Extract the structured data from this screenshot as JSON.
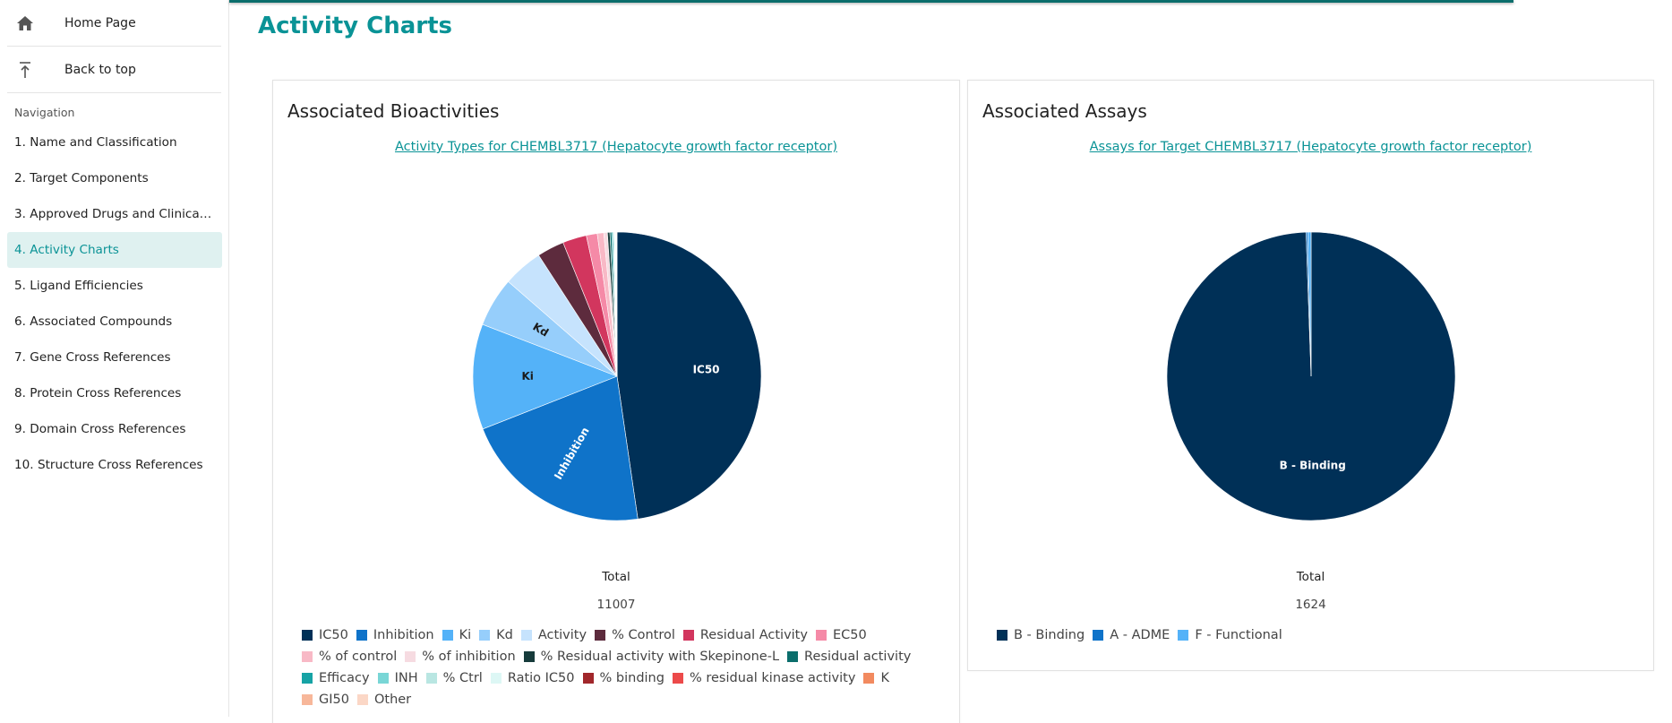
{
  "sidebar": {
    "home_label": "Home Page",
    "top_label": "Back to top",
    "nav_heading": "Navigation",
    "items": [
      {
        "label": "1. Name and Classification"
      },
      {
        "label": "2. Target Components"
      },
      {
        "label": "3. Approved Drugs and Clinical ..."
      },
      {
        "label": "4. Activity Charts"
      },
      {
        "label": "5. Ligand Efficiencies"
      },
      {
        "label": "6. Associated Compounds"
      },
      {
        "label": "7. Gene Cross References"
      },
      {
        "label": "8. Protein Cross References"
      },
      {
        "label": "9. Domain Cross References"
      },
      {
        "label": "10. Structure Cross References"
      }
    ],
    "active_index": 3
  },
  "page": {
    "title": "Activity Charts"
  },
  "bioactivities": {
    "heading": "Associated Bioactivities",
    "link": "Activity Types for CHEMBL3717 (Hepatocyte growth factor receptor)",
    "total_label": "Total",
    "total_value": "11007"
  },
  "assays": {
    "heading": "Associated Assays",
    "link": "Assays for Target CHEMBL3717 (Hepatocyte growth factor receptor)",
    "total_label": "Total",
    "total_value": "1624"
  },
  "chart_data": [
    {
      "type": "pie",
      "title": "Activity Types for CHEMBL3717 (Hepatocyte growth factor receptor)",
      "total": 11007,
      "legend_position": "bottom",
      "slices": [
        {
          "label": "IC50",
          "value": 5250,
          "color": "#003057",
          "show_label": true
        },
        {
          "label": "Inhibition",
          "value": 2350,
          "color": "#0f73c9",
          "show_label": true
        },
        {
          "label": "Ki",
          "value": 1300,
          "color": "#54b2f8",
          "show_label": true
        },
        {
          "label": "Kd",
          "value": 610,
          "color": "#96cefb",
          "show_label": true
        },
        {
          "label": "Activity",
          "value": 490,
          "color": "#c6e3fd",
          "show_label": false
        },
        {
          "label": "% Control",
          "value": 335,
          "color": "#5d2b3d",
          "show_label": false
        },
        {
          "label": "Residual Activity",
          "value": 295,
          "color": "#d2365e",
          "show_label": false
        },
        {
          "label": "EC50",
          "value": 135,
          "color": "#f58aa7",
          "show_label": false
        },
        {
          "label": "% of control",
          "value": 80,
          "color": "#f8b9c6",
          "show_label": false
        },
        {
          "label": "% of inhibition",
          "value": 45,
          "color": "#f6dbe1",
          "show_label": false
        },
        {
          "label": "% Residual activity with Skepinone-L",
          "value": 30,
          "color": "#163b3b",
          "show_label": false
        },
        {
          "label": "Residual activity",
          "value": 22,
          "color": "#0b6e6c",
          "show_label": false
        },
        {
          "label": "Efficacy",
          "value": 15,
          "color": "#16a3a5",
          "show_label": false
        },
        {
          "label": "INH",
          "value": 12,
          "color": "#79d6d6",
          "show_label": false
        },
        {
          "label": "% Ctrl",
          "value": 9,
          "color": "#b9e6e2",
          "show_label": false
        },
        {
          "label": "Ratio IC50",
          "value": 7,
          "color": "#ddf7f5",
          "show_label": false
        },
        {
          "label": "% binding",
          "value": 5,
          "color": "#a1272b",
          "show_label": false
        },
        {
          "label": "% residual kinase activity",
          "value": 4,
          "color": "#ec4a4a",
          "show_label": false
        },
        {
          "label": "K",
          "value": 3,
          "color": "#f28a5f",
          "show_label": false
        },
        {
          "label": "GI50",
          "value": 3,
          "color": "#f7b79a",
          "show_label": false
        },
        {
          "label": "Other",
          "value": 7,
          "color": "#fbd7c6",
          "show_label": false
        }
      ]
    },
    {
      "type": "pie",
      "title": "Assays for Target CHEMBL3717 (Hepatocyte growth factor receptor)",
      "total": 1624,
      "legend_position": "bottom",
      "slices": [
        {
          "label": "B - Binding",
          "value": 1615,
          "color": "#003057",
          "show_label": true
        },
        {
          "label": "A - ADME",
          "value": 3,
          "color": "#0f73c9",
          "show_label": false
        },
        {
          "label": "F - Functional",
          "value": 6,
          "color": "#54b2f8",
          "show_label": false
        }
      ]
    }
  ]
}
